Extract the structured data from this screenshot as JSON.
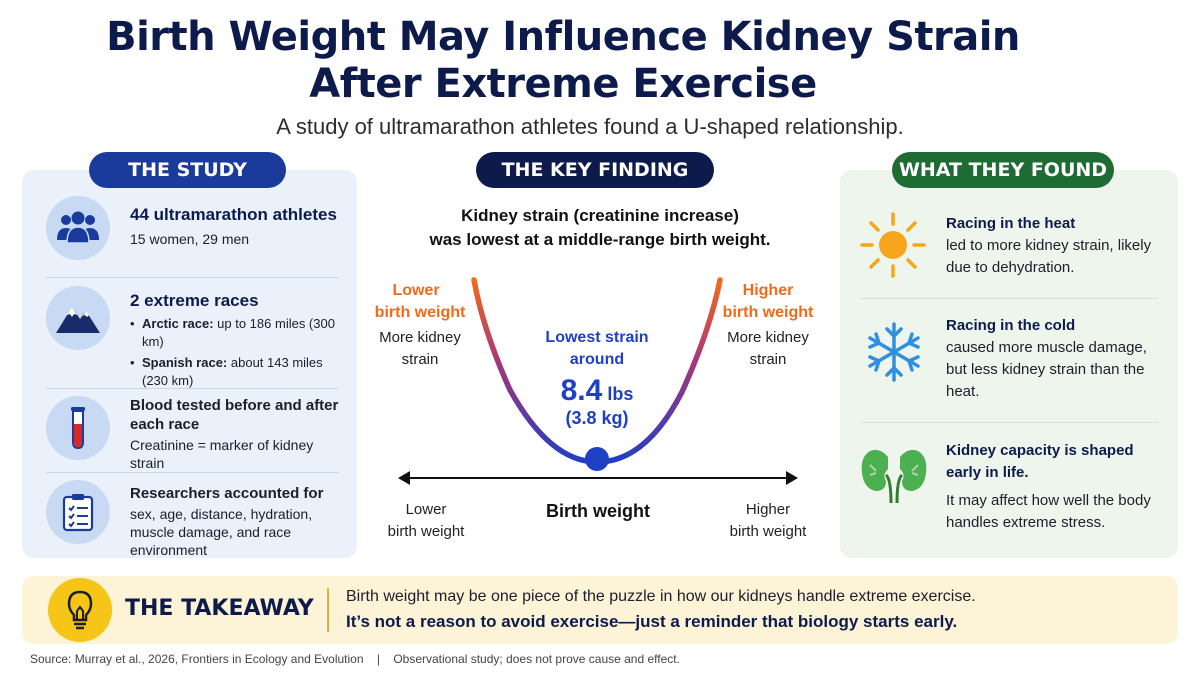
{
  "header": {
    "title_line1": "Birth Weight May Influence Kidney Strain",
    "title_line2": "After Extreme Exercise",
    "subtitle": "A study of ultramarathon athletes found a U-shaped relationship."
  },
  "study": {
    "label": "THE STUDY",
    "items": [
      {
        "icon": "people-icon",
        "headline": "44 ultramarathon athletes",
        "detail": "15 women, 29 men"
      },
      {
        "icon": "mountain-icon",
        "headline": "2 extreme races",
        "bullets": [
          {
            "name": "Arctic race:",
            "text": " up to 186 miles (300 km)"
          },
          {
            "name": "Spanish race:",
            "text": " about 143 miles (230 km)"
          }
        ]
      },
      {
        "icon": "test-tube-icon",
        "headline": "Blood tested before and after each race",
        "detail": "Creatinine = marker of kidney strain"
      },
      {
        "icon": "clipboard-icon",
        "headline": "Researchers accounted for",
        "detail": "sex, age, distance, hydration, muscle damage, and race environment"
      }
    ]
  },
  "finding": {
    "label": "THE KEY FINDING",
    "caption_line1": "Kidney strain (creatinine increase)",
    "caption_line2": "was lowest at a middle-range birth weight.",
    "left_label_line1": "Lower",
    "left_label_line2": "birth weight",
    "left_sub_line1": "More kidney",
    "left_sub_line2": "strain",
    "right_label_line1": "Higher",
    "right_label_line2": "birth weight",
    "right_sub_line1": "More kidney",
    "right_sub_line2": "strain",
    "min_label_line1": "Lowest strain",
    "min_label_line2": "around",
    "min_value": "8.4",
    "min_unit": "lbs",
    "min_kg": "(3.8 kg)",
    "axis_label": "Birth weight",
    "axis_left_line1": "Lower",
    "axis_left_line2": "birth weight",
    "axis_right_line1": "Higher",
    "axis_right_line2": "birth weight",
    "colors": {
      "high": "#f26a1b",
      "low": "#1f3fc4",
      "axis": "#111111"
    }
  },
  "found": {
    "label": "WHAT THEY FOUND",
    "items": [
      {
        "icon": "sun-icon",
        "headline": "Racing in the heat",
        "detail": "led to more kidney strain, likely due to dehydration."
      },
      {
        "icon": "snowflake-icon",
        "headline": "Racing in the cold",
        "detail": "caused more muscle damage, but less kidney strain than the heat."
      },
      {
        "icon": "kidneys-icon",
        "headline": "Kidney capacity is shaped early in life.",
        "detail": "It may affect how well the body handles extreme stress."
      }
    ]
  },
  "takeaway": {
    "icon": "lightbulb-icon",
    "label": "THE TAKEAWAY",
    "line1": "Birth weight may be one piece of the puzzle in how our kidneys handle extreme exercise.",
    "line2": "It’s not a reason to avoid exercise—just a reminder that biology starts early."
  },
  "footer": {
    "source": "Source: Murray et al., 2026, Frontiers in Ecology and Evolution",
    "separator": "|",
    "note": "Observational study; does not prove cause and effect."
  }
}
